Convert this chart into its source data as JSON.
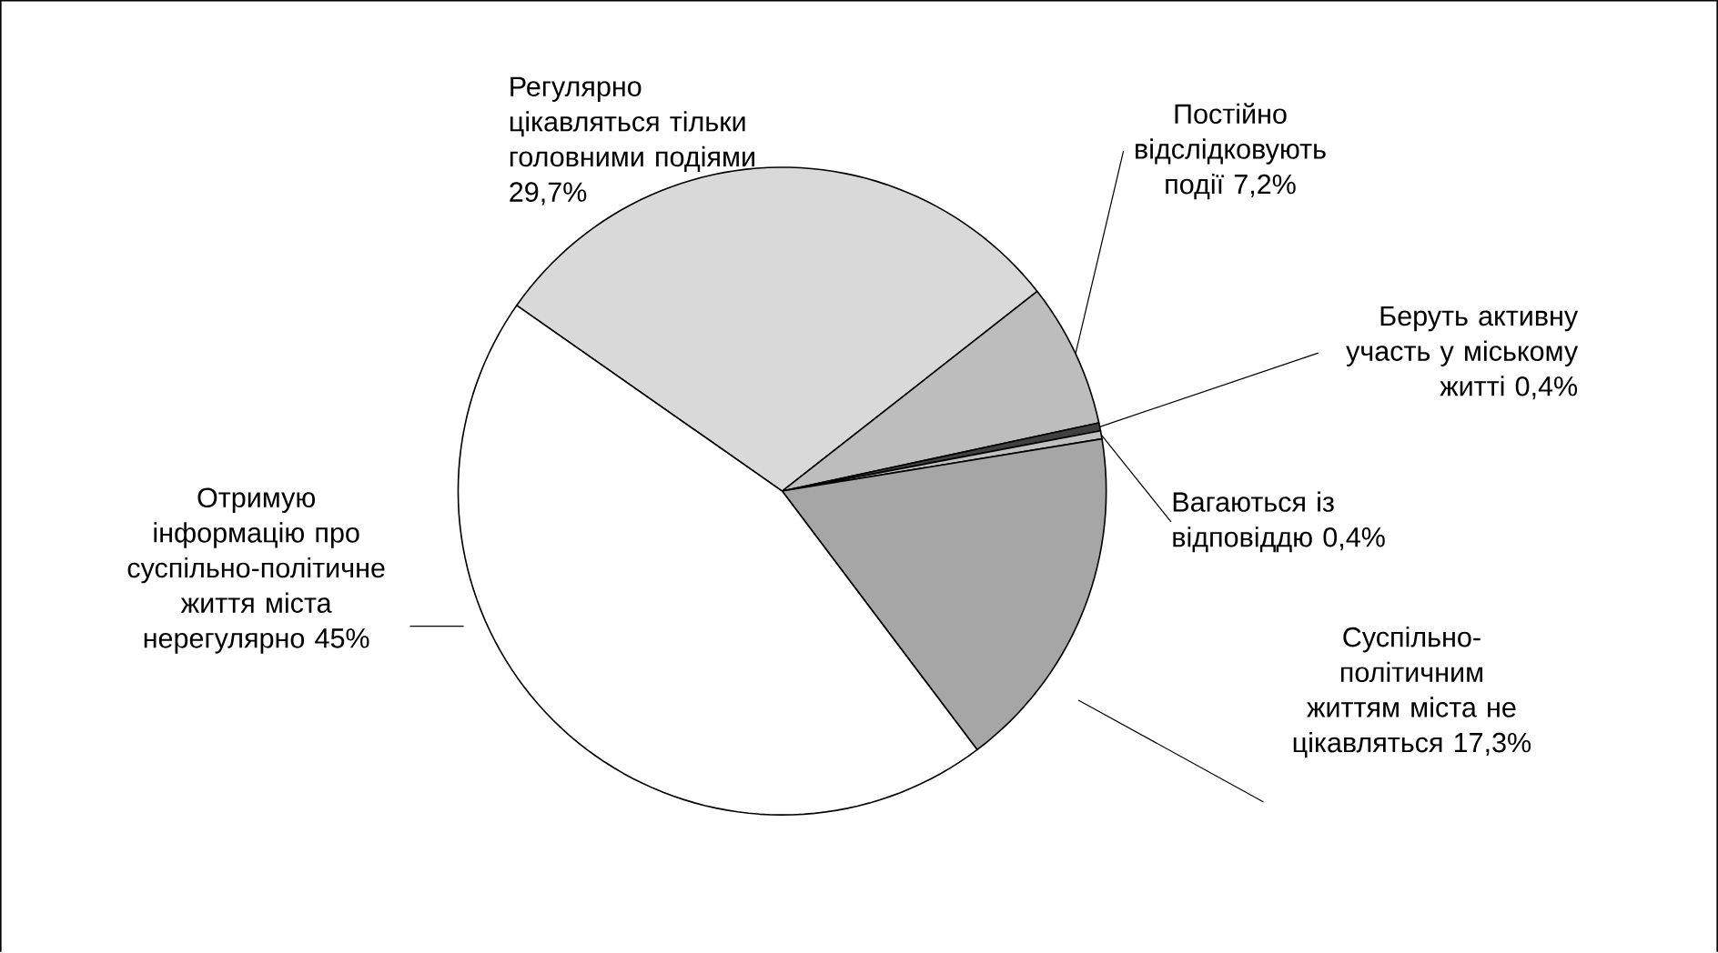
{
  "chart_data": {
    "type": "pie",
    "categories": [
      "Регулярно цікавляться тільки головними подіями",
      "Постійно відслідковують події",
      "Беруть активну участь у міському житті",
      "Вагаються із відповіддю",
      "Суспільно-політичним життям міста не цікавляться",
      "Отримую інформацію про суспільно-політичне життя міста нерегулярно"
    ],
    "values": [
      29.7,
      7.2,
      0.4,
      0.4,
      17.3,
      45
    ],
    "value_labels": [
      "29,7%",
      "7,2%",
      "0,4%",
      "0,4%",
      "17,3%",
      "45%"
    ],
    "colors": [
      "#d9d9d9",
      "#bdbdbd",
      "#404040",
      "#c0c0c0",
      "#a6a6a6",
      "#ffffff"
    ],
    "legend": false
  }
}
